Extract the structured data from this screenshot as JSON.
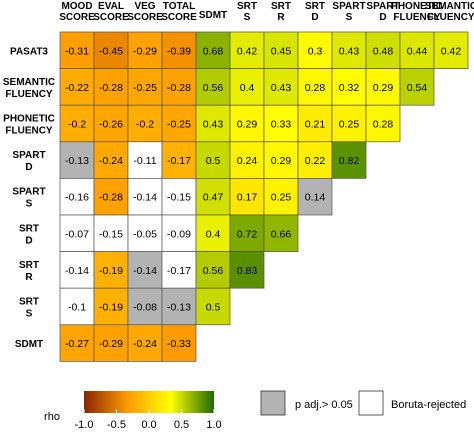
{
  "chart_data": {
    "type": "heatmap",
    "title": "",
    "columns": [
      {
        "lines": [
          "MOOD",
          "SCORE"
        ],
        "color": "#8a2be2"
      },
      {
        "lines": [
          "EVAL",
          "SCORE"
        ],
        "color": "#8a2be2"
      },
      {
        "lines": [
          "VEG",
          "SCORE"
        ],
        "color": "#8a2be2"
      },
      {
        "lines": [
          "TOTAL",
          "SCORE"
        ],
        "color": "#8a2be2"
      },
      {
        "lines": [
          "SDMT"
        ],
        "color": "#000000"
      },
      {
        "lines": [
          "SRT",
          "S"
        ],
        "color": "#000000"
      },
      {
        "lines": [
          "SRT",
          "R"
        ],
        "color": "#000000"
      },
      {
        "lines": [
          "SRT",
          "D"
        ],
        "color": "#000000"
      },
      {
        "lines": [
          "SPART",
          "S"
        ],
        "color": "#000000"
      },
      {
        "lines": [
          "SPART",
          "D"
        ],
        "color": "#000000"
      },
      {
        "lines": [
          "PHONETIC",
          "FLUENCY"
        ],
        "color": "#000000"
      },
      {
        "lines": [
          "SEMANTIC",
          "FLUENCY"
        ],
        "color": "#000000"
      }
    ],
    "rows": [
      {
        "lines": [
          "PASAT3"
        ],
        "values": [
          -0.31,
          -0.45,
          -0.29,
          -0.39,
          0.68,
          0.42,
          0.45,
          0.3,
          0.43,
          0.48,
          0.44,
          0.42
        ],
        "labels": [
          "-0.31",
          "-0.45",
          "-0.29",
          "-0.39",
          "0.68",
          "0.42",
          "0.45",
          "0.3",
          "0.43",
          "0.48",
          "0.44",
          "0.42"
        ],
        "status": [
          "",
          "",
          "",
          "",
          "",
          "",
          "",
          "",
          "",
          "",
          "",
          ""
        ]
      },
      {
        "lines": [
          "SEMANTIC",
          "FLUENCY"
        ],
        "values": [
          -0.22,
          -0.28,
          -0.25,
          -0.28,
          0.56,
          0.4,
          0.43,
          0.28,
          0.32,
          0.29,
          0.54
        ],
        "labels": [
          "-0.22",
          "-0.28",
          "-0.25",
          "-0.28",
          "0.56",
          "0.4",
          "0.43",
          "0.28",
          "0.32",
          "0.29",
          "0.54"
        ],
        "status": [
          "",
          "",
          "",
          "",
          "",
          "",
          "",
          "",
          "",
          "",
          ""
        ]
      },
      {
        "lines": [
          "PHONETIC",
          "FLUENCY"
        ],
        "values": [
          -0.2,
          -0.26,
          -0.2,
          -0.25,
          0.43,
          0.29,
          0.33,
          0.21,
          0.25,
          0.28
        ],
        "labels": [
          "-0.2",
          "-0.26",
          "-0.2",
          "-0.25",
          "0.43",
          "0.29",
          "0.33",
          "0.21",
          "0.25",
          "0.28"
        ],
        "status": [
          "",
          "",
          "",
          "",
          "",
          "",
          "",
          "",
          "",
          ""
        ]
      },
      {
        "lines": [
          "SPART",
          "D"
        ],
        "values": [
          -0.13,
          -0.24,
          -0.11,
          -0.17,
          0.5,
          0.24,
          0.29,
          0.22,
          0.82
        ],
        "labels": [
          "-0.13",
          "-0.24",
          "-0.11",
          "-0.17",
          "0.5",
          "0.24",
          "0.29",
          "0.22",
          "0.82"
        ],
        "status": [
          "grey",
          "",
          "white",
          "",
          "",
          "",
          "",
          "",
          ""
        ]
      },
      {
        "lines": [
          "SPART",
          "S"
        ],
        "values": [
          -0.16,
          -0.28,
          -0.14,
          -0.15,
          0.47,
          0.17,
          0.25,
          0.14
        ],
        "labels": [
          "-0.16",
          "-0.28",
          "-0.14",
          "-0.15",
          "0.47",
          "0.17",
          "0.25",
          "0.14"
        ],
        "status": [
          "white",
          "",
          "white",
          "white",
          "",
          "",
          "",
          "grey"
        ]
      },
      {
        "lines": [
          "SRT",
          "D"
        ],
        "values": [
          -0.07,
          -0.15,
          -0.05,
          -0.09,
          0.4,
          0.72,
          0.66
        ],
        "labels": [
          "-0.07",
          "-0.15",
          "-0.05",
          "-0.09",
          "0.4",
          "0.72",
          "0.66"
        ],
        "status": [
          "white",
          "white",
          "white",
          "white",
          "",
          "",
          ""
        ]
      },
      {
        "lines": [
          "SRT",
          "R"
        ],
        "values": [
          -0.14,
          -0.19,
          -0.14,
          -0.17,
          0.56,
          0.83
        ],
        "labels": [
          "-0.14",
          "-0.19",
          "-0.14",
          "-0.17",
          "0.56",
          "0.83"
        ],
        "status": [
          "white",
          "",
          "grey",
          "white",
          "",
          ""
        ]
      },
      {
        "lines": [
          "SRT",
          "S"
        ],
        "values": [
          -0.1,
          -0.19,
          -0.08,
          -0.13,
          0.5
        ],
        "labels": [
          "-0.1",
          "-0.19",
          "-0.08",
          "-0.13",
          "0.5"
        ],
        "status": [
          "white",
          "",
          "grey",
          "grey",
          ""
        ]
      },
      {
        "lines": [
          "SDMT"
        ],
        "values": [
          -0.27,
          -0.29,
          -0.24,
          -0.33
        ],
        "labels": [
          "-0.27",
          "-0.29",
          "-0.24",
          "-0.33"
        ],
        "status": [
          "",
          "",
          "",
          ""
        ]
      }
    ],
    "colorbar": {
      "label": "rho",
      "range": [
        -1.0,
        1.0
      ],
      "ticks": [
        -1.0,
        -0.5,
        0.0,
        0.5,
        1.0
      ],
      "tick_labels": [
        "-1.0",
        "-0.5",
        "0.0",
        "0.5",
        "1.0"
      ],
      "stops": [
        "#8b2500",
        "#ff9a00",
        "#ffff00",
        "#1f6a00"
      ]
    },
    "legend": [
      {
        "key": "grey",
        "label": "p adj.> 0.05",
        "color": "#b3b3b3"
      },
      {
        "key": "white",
        "label": "Boruta-rejected",
        "color": "#ffffff"
      }
    ]
  }
}
